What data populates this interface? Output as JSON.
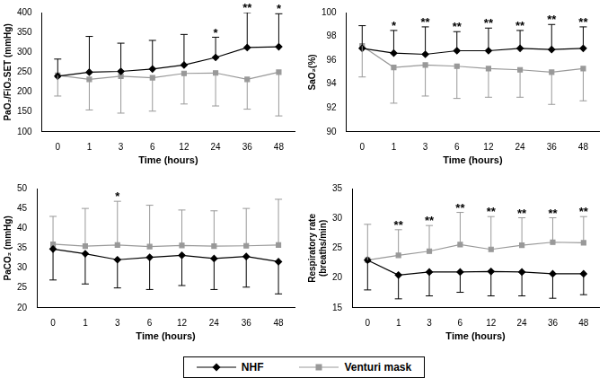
{
  "chart_data": [
    {
      "type": "line",
      "y_label": "PaO₂/FiO₂SET (mmHg)",
      "x_label": "Time (hours)",
      "categories": [
        "0",
        "1",
        "3",
        "6",
        "12",
        "24",
        "36",
        "48"
      ],
      "ylim": [
        100,
        400
      ],
      "yticks": [
        100,
        150,
        200,
        250,
        300,
        350,
        400
      ],
      "grid": false,
      "legend": "bottom",
      "series": [
        {
          "name": "NHF",
          "color": "#000000",
          "marker": "diamond",
          "line_style": "solid",
          "values": [
            240,
            250,
            252,
            258,
            268,
            287,
            312,
            314
          ],
          "error_plus": [
            43,
            90,
            71,
            72,
            77,
            51,
            88,
            83
          ]
        },
        {
          "name": "Venturi mask",
          "color": "#999999",
          "marker": "square",
          "line_style": "solid",
          "values": [
            242,
            232,
            240,
            236,
            247,
            248,
            232,
            250
          ],
          "error_minus": [
            52,
            77,
            93,
            84,
            77,
            83,
            75,
            110
          ]
        }
      ],
      "annotations": [
        {
          "x": "24",
          "text": "*"
        },
        {
          "x": "36",
          "text": "**"
        },
        {
          "x": "48",
          "text": "*"
        }
      ]
    },
    {
      "type": "line",
      "y_label": "SaO₂(%)",
      "x_label": "Time (hours)",
      "categories": [
        "0",
        "1",
        "3",
        "6",
        "12",
        "24",
        "36",
        "48"
      ],
      "ylim": [
        90,
        100
      ],
      "yticks": [
        90,
        92,
        94,
        96,
        98,
        100
      ],
      "grid": false,
      "legend": "bottom",
      "series": [
        {
          "name": "NHF",
          "color": "#000000",
          "marker": "diamond",
          "line_style": "solid",
          "values": [
            97,
            96.6,
            96.5,
            96.8,
            96.8,
            97,
            96.9,
            97
          ],
          "error_plus": [
            1.9,
            1.9,
            2.3,
            1.6,
            1.9,
            1.5,
            2.1,
            1.8
          ]
        },
        {
          "name": "Venturi mask",
          "color": "#999999",
          "marker": "square",
          "line_style": "solid",
          "values": [
            97.2,
            95.4,
            95.6,
            95.5,
            95.3,
            95.2,
            95,
            95.3
          ],
          "error_minus": [
            2.6,
            3,
            2.6,
            2.7,
            2.4,
            2.3,
            2.7,
            2.7
          ]
        }
      ],
      "annotations": [
        {
          "x": "1",
          "text": "*"
        },
        {
          "x": "3",
          "text": "**"
        },
        {
          "x": "6",
          "text": "**"
        },
        {
          "x": "12",
          "text": "**"
        },
        {
          "x": "24",
          "text": "**"
        },
        {
          "x": "36",
          "text": "**"
        },
        {
          "x": "48",
          "text": "**"
        }
      ]
    },
    {
      "type": "line",
      "y_label": "PaCO₂ (mmHg)",
      "x_label": "Time (hours)",
      "categories": [
        "0",
        "1",
        "3",
        "6",
        "12",
        "24",
        "36",
        "48"
      ],
      "ylim": [
        20,
        50
      ],
      "yticks": [
        20,
        25,
        30,
        35,
        40,
        45,
        50
      ],
      "grid": false,
      "legend": "bottom",
      "series": [
        {
          "name": "NHF",
          "color": "#000000",
          "marker": "diamond",
          "line_style": "solid",
          "values": [
            34.8,
            33.6,
            32.1,
            32.7,
            33.2,
            32.4,
            32.9,
            31.6
          ],
          "error_minus": [
            7.8,
            7.6,
            7.1,
            8.1,
            7.6,
            7.8,
            7.7,
            8.1
          ]
        },
        {
          "name": "Venturi mask",
          "color": "#999999",
          "marker": "square",
          "line_style": "solid",
          "values": [
            36,
            35.5,
            35.8,
            35.4,
            35.7,
            35.5,
            35.6,
            35.8
          ],
          "error_plus": [
            7,
            9.5,
            11,
            10.4,
            8.9,
            8.9,
            9.4,
            11.5
          ]
        }
      ],
      "annotations": [
        {
          "x": "3",
          "text": "*"
        }
      ]
    },
    {
      "type": "line",
      "y_label": [
        "Respiratory rate",
        "(breaths/min)"
      ],
      "x_label": "Time (hours)",
      "categories": [
        "0",
        "1",
        "3",
        "6",
        "12",
        "24",
        "36",
        "48"
      ],
      "ylim": [
        15,
        35
      ],
      "yticks": [
        15,
        20,
        25,
        30,
        35
      ],
      "grid": false,
      "legend": "bottom",
      "series": [
        {
          "name": "NHF",
          "color": "#000000",
          "marker": "diamond",
          "line_style": "solid",
          "values": [
            23,
            20.5,
            21,
            21,
            21.1,
            21,
            20.7,
            20.7
          ],
          "error_minus": [
            5,
            4,
            4,
            3.4,
            4.1,
            4,
            4.1,
            3.5
          ]
        },
        {
          "name": "Venturi mask",
          "color": "#999999",
          "marker": "square",
          "line_style": "solid",
          "values": [
            23,
            23.8,
            24.5,
            25.6,
            24.8,
            25.5,
            26,
            25.9
          ],
          "error_plus": [
            6,
            4.3,
            4.3,
            5.4,
            5.5,
            4.6,
            4.1,
            4.4
          ]
        }
      ],
      "annotations": [
        {
          "x": "1",
          "text": "**"
        },
        {
          "x": "3",
          "text": "**"
        },
        {
          "x": "6",
          "text": "**"
        },
        {
          "x": "12",
          "text": "**"
        },
        {
          "x": "24",
          "text": "**"
        },
        {
          "x": "36",
          "text": "**"
        },
        {
          "x": "48",
          "text": "**"
        }
      ]
    }
  ]
}
